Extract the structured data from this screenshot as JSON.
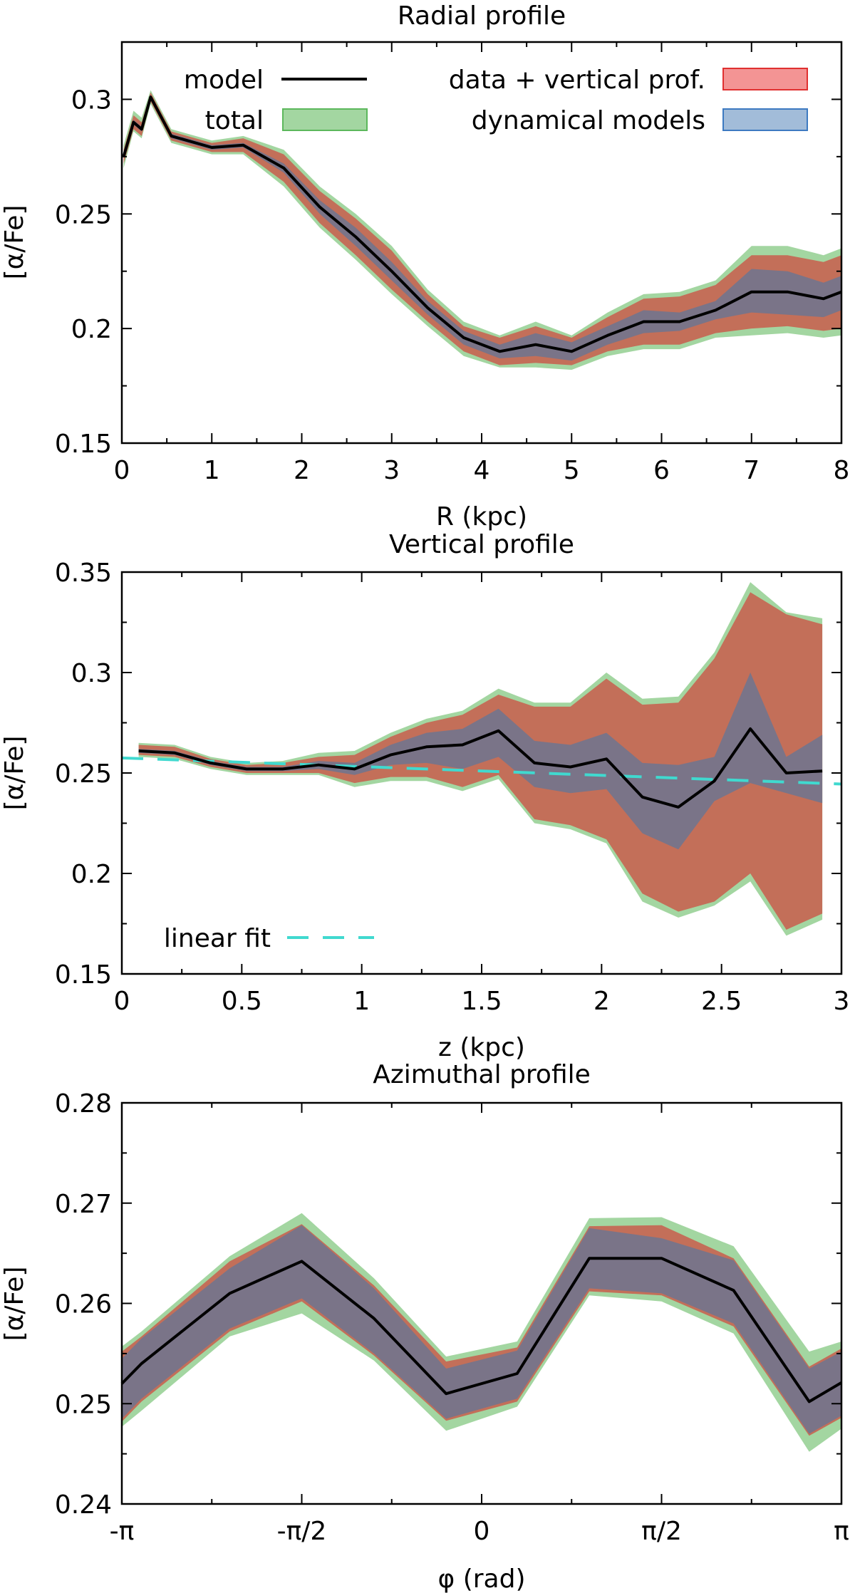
{
  "colors": {
    "total_fill": "#a3d6a1",
    "total_edge": "#5cb85c",
    "data_fill": "#c36f59",
    "data_legend_fill": "#f39494",
    "data_legend_edge": "#e03030",
    "dyn_fill": "#7a7488",
    "dyn_legend_fill": "#a2bcd9",
    "dyn_legend_edge": "#3d7ac1",
    "model": "#000000",
    "fit": "#40d9cf"
  },
  "legend": {
    "model": "model",
    "total": "total",
    "data": "data + vertical prof.",
    "dynamical": "dynamical models",
    "fit": "linear fit"
  },
  "chart_data": [
    {
      "id": "radial",
      "type": "line",
      "title": "Radial profile",
      "xlabel": "R (kpc)",
      "ylabel": "[α/Fe]",
      "xlim": [
        0,
        8
      ],
      "ylim": [
        0.15,
        0.325
      ],
      "xticks": [
        0,
        1,
        2,
        3,
        4,
        5,
        6,
        7,
        8
      ],
      "xtick_labels": [
        "0",
        "1",
        "2",
        "3",
        "4",
        "5",
        "6",
        "7",
        "8"
      ],
      "yticks": [
        0.15,
        0.2,
        0.25,
        0.3
      ],
      "ytick_labels": [
        "0.15",
        "0.2",
        "0.25",
        "0.3"
      ],
      "x": [
        0.02,
        0.13,
        0.22,
        0.32,
        0.55,
        1.0,
        1.35,
        1.8,
        2.2,
        2.6,
        3.0,
        3.4,
        3.8,
        4.2,
        4.6,
        5.0,
        5.4,
        5.8,
        6.2,
        6.6,
        7.0,
        7.4,
        7.8,
        8.0
      ],
      "model": [
        0.275,
        0.29,
        0.287,
        0.301,
        0.284,
        0.279,
        0.28,
        0.27,
        0.253,
        0.24,
        0.225,
        0.209,
        0.196,
        0.19,
        0.193,
        0.19,
        0.197,
        0.203,
        0.203,
        0.208,
        0.216,
        0.216,
        0.213,
        0.216
      ],
      "dyn_lower": [
        0.275,
        0.289,
        0.286,
        0.3,
        0.283,
        0.278,
        0.279,
        0.268,
        0.25,
        0.236,
        0.221,
        0.206,
        0.193,
        0.187,
        0.188,
        0.186,
        0.193,
        0.198,
        0.199,
        0.204,
        0.207,
        0.206,
        0.205,
        0.208
      ],
      "dyn_upper": [
        0.276,
        0.291,
        0.288,
        0.302,
        0.285,
        0.28,
        0.281,
        0.272,
        0.256,
        0.244,
        0.229,
        0.212,
        0.199,
        0.193,
        0.198,
        0.194,
        0.201,
        0.208,
        0.207,
        0.212,
        0.226,
        0.225,
        0.22,
        0.223
      ],
      "data_lower": [
        0.272,
        0.287,
        0.284,
        0.299,
        0.282,
        0.277,
        0.277,
        0.264,
        0.246,
        0.232,
        0.217,
        0.203,
        0.19,
        0.184,
        0.185,
        0.184,
        0.19,
        0.193,
        0.193,
        0.198,
        0.2,
        0.201,
        0.199,
        0.2
      ],
      "data_upper": [
        0.278,
        0.293,
        0.29,
        0.303,
        0.286,
        0.281,
        0.283,
        0.276,
        0.26,
        0.248,
        0.234,
        0.215,
        0.201,
        0.196,
        0.201,
        0.196,
        0.205,
        0.213,
        0.214,
        0.219,
        0.232,
        0.232,
        0.229,
        0.232
      ],
      "total_lower": [
        0.27,
        0.286,
        0.283,
        0.298,
        0.281,
        0.276,
        0.276,
        0.262,
        0.244,
        0.23,
        0.215,
        0.201,
        0.188,
        0.183,
        0.183,
        0.182,
        0.188,
        0.191,
        0.191,
        0.196,
        0.197,
        0.198,
        0.196,
        0.197
      ],
      "total_upper": [
        0.28,
        0.295,
        0.292,
        0.304,
        0.287,
        0.282,
        0.284,
        0.278,
        0.262,
        0.25,
        0.236,
        0.217,
        0.203,
        0.197,
        0.203,
        0.197,
        0.207,
        0.215,
        0.216,
        0.221,
        0.236,
        0.236,
        0.232,
        0.235
      ]
    },
    {
      "id": "vertical",
      "type": "line",
      "title": "Vertical profile",
      "xlabel": "z (kpc)",
      "ylabel": "[α/Fe]",
      "xlim": [
        0,
        3
      ],
      "ylim": [
        0.15,
        0.35
      ],
      "xticks": [
        0,
        0.5,
        1,
        1.5,
        2,
        2.5,
        3
      ],
      "xtick_labels": [
        "0",
        "0.5",
        "1",
        "1.5",
        "2",
        "2.5",
        "3"
      ],
      "yticks": [
        0.15,
        0.2,
        0.25,
        0.3,
        0.35
      ],
      "ytick_labels": [
        "0.15",
        "0.2",
        "0.25",
        "0.3",
        "0.35"
      ],
      "x": [
        0.07,
        0.22,
        0.37,
        0.52,
        0.67,
        0.82,
        0.97,
        1.12,
        1.27,
        1.42,
        1.57,
        1.72,
        1.87,
        2.02,
        2.17,
        2.32,
        2.47,
        2.62,
        2.77,
        2.92
      ],
      "model": [
        0.261,
        0.26,
        0.255,
        0.252,
        0.252,
        0.254,
        0.252,
        0.259,
        0.263,
        0.264,
        0.271,
        0.255,
        0.253,
        0.257,
        0.238,
        0.233,
        0.246,
        0.272,
        0.25,
        0.251
      ],
      "dyn_lower": [
        0.26,
        0.259,
        0.254,
        0.251,
        0.251,
        0.252,
        0.249,
        0.254,
        0.255,
        0.252,
        0.258,
        0.243,
        0.24,
        0.242,
        0.22,
        0.212,
        0.236,
        0.245,
        0.24,
        0.235
      ],
      "dyn_upper": [
        0.262,
        0.261,
        0.256,
        0.253,
        0.253,
        0.256,
        0.255,
        0.264,
        0.27,
        0.272,
        0.282,
        0.266,
        0.264,
        0.27,
        0.255,
        0.254,
        0.258,
        0.3,
        0.258,
        0.269
      ],
      "data_lower": [
        0.259,
        0.258,
        0.253,
        0.25,
        0.25,
        0.25,
        0.245,
        0.248,
        0.248,
        0.243,
        0.249,
        0.227,
        0.224,
        0.217,
        0.19,
        0.181,
        0.186,
        0.2,
        0.172,
        0.18
      ],
      "data_upper": [
        0.264,
        0.263,
        0.257,
        0.254,
        0.255,
        0.258,
        0.259,
        0.268,
        0.275,
        0.279,
        0.289,
        0.283,
        0.283,
        0.297,
        0.284,
        0.285,
        0.307,
        0.34,
        0.329,
        0.324
      ],
      "total_lower": [
        0.258,
        0.257,
        0.252,
        0.249,
        0.249,
        0.249,
        0.243,
        0.246,
        0.246,
        0.241,
        0.247,
        0.225,
        0.222,
        0.215,
        0.186,
        0.178,
        0.184,
        0.196,
        0.169,
        0.177
      ],
      "total_upper": [
        0.265,
        0.264,
        0.258,
        0.255,
        0.256,
        0.26,
        0.261,
        0.27,
        0.277,
        0.281,
        0.292,
        0.285,
        0.285,
        0.3,
        0.287,
        0.288,
        0.31,
        0.345,
        0.33,
        0.327
      ],
      "fit": {
        "x": [
          0,
          3
        ],
        "y": [
          0.2575,
          0.2445
        ]
      }
    },
    {
      "id": "azimuthal",
      "type": "line",
      "title": "Azimuthal profile",
      "xlabel": "φ (rad)",
      "ylabel": "[α/Fe]",
      "xlim": [
        -3.14159,
        3.14159
      ],
      "ylim": [
        0.24,
        0.28
      ],
      "xticks": [
        -3.14159,
        -1.5708,
        0,
        1.5708,
        3.14159
      ],
      "xtick_labels": [
        "-π",
        "-π/2",
        "0",
        "π/2",
        "π"
      ],
      "yticks": [
        0.24,
        0.25,
        0.26,
        0.27,
        0.28
      ],
      "ytick_labels": [
        "0.24",
        "0.25",
        "0.26",
        "0.27",
        "0.28"
      ],
      "x": [
        -3.1416,
        -2.97,
        -2.2,
        -1.571,
        -0.94,
        -0.31,
        0.31,
        0.94,
        1.571,
        2.2,
        2.86,
        3.1416
      ],
      "model": [
        0.252,
        0.254,
        0.261,
        0.2642,
        0.2585,
        0.251,
        0.253,
        0.2645,
        0.2645,
        0.2613,
        0.2502,
        0.2521
      ],
      "dyn_lower": [
        0.2485,
        0.2505,
        0.2575,
        0.2605,
        0.255,
        0.2485,
        0.2505,
        0.2615,
        0.261,
        0.258,
        0.247,
        0.2488
      ],
      "dyn_upper": [
        0.2545,
        0.2565,
        0.2635,
        0.2678,
        0.2615,
        0.2535,
        0.2553,
        0.2675,
        0.2665,
        0.2643,
        0.2535,
        0.2552
      ],
      "data_lower": [
        0.2482,
        0.2502,
        0.2572,
        0.2602,
        0.2548,
        0.2483,
        0.2502,
        0.2612,
        0.2608,
        0.2577,
        0.2468,
        0.2486
      ],
      "data_upper": [
        0.2552,
        0.2567,
        0.2642,
        0.2679,
        0.2618,
        0.2542,
        0.2556,
        0.2677,
        0.2678,
        0.2645,
        0.2537,
        0.2555
      ],
      "total_lower": [
        0.2477,
        0.2493,
        0.2567,
        0.259,
        0.2543,
        0.2473,
        0.2497,
        0.2608,
        0.2602,
        0.257,
        0.2452,
        0.2475
      ],
      "total_upper": [
        0.2557,
        0.2572,
        0.2647,
        0.269,
        0.2625,
        0.2547,
        0.2562,
        0.2685,
        0.2686,
        0.2657,
        0.2552,
        0.2562
      ]
    }
  ]
}
